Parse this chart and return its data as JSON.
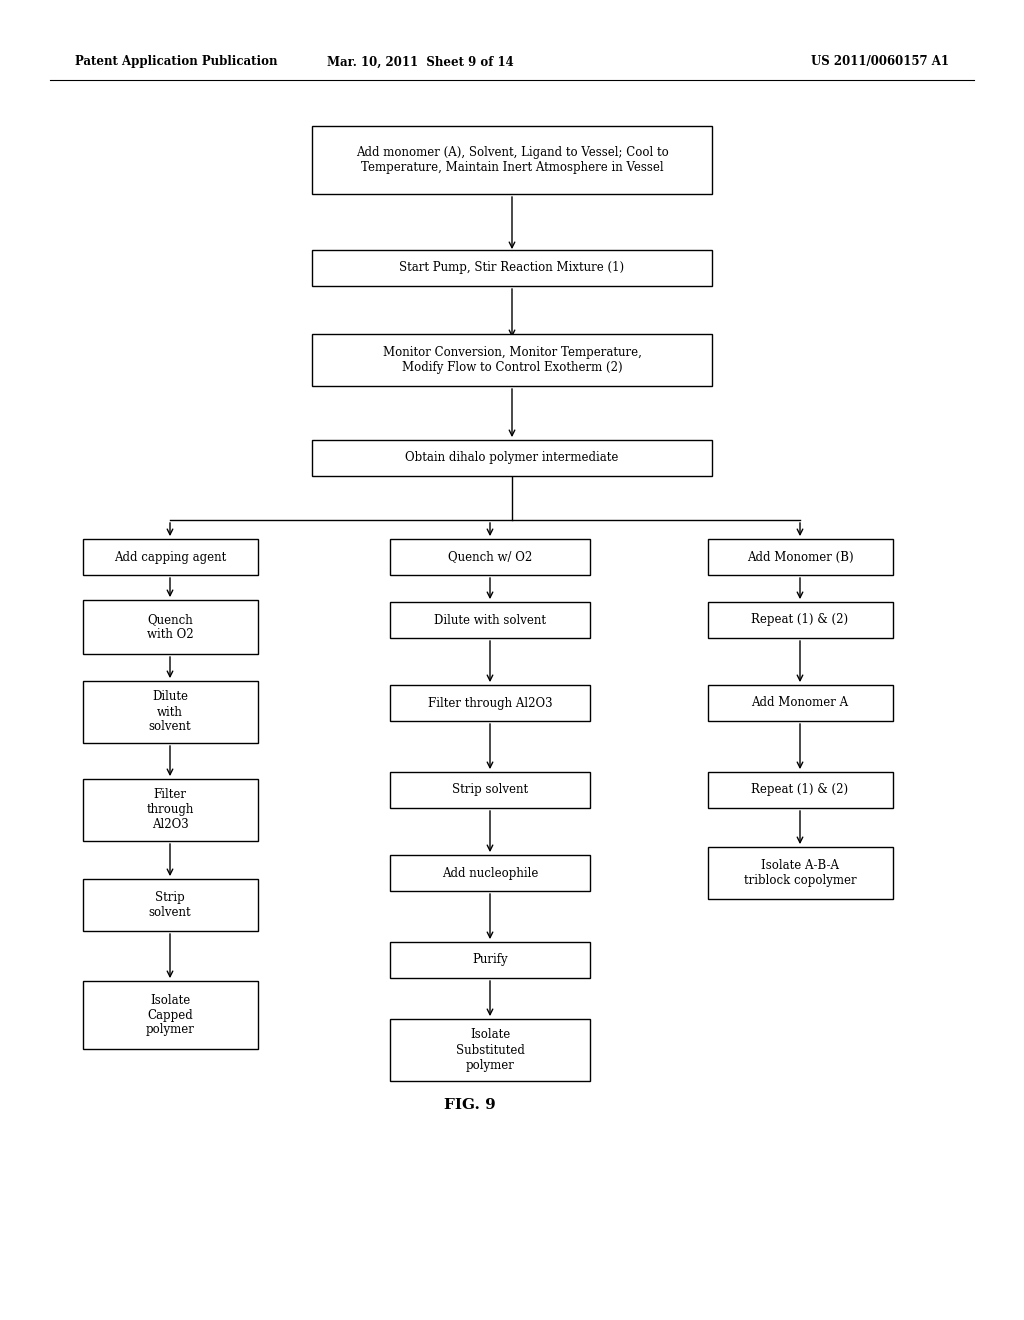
{
  "header_left": "Patent Application Publication",
  "header_mid": "Mar. 10, 2011  Sheet 9 of 14",
  "header_right": "US 2011/0060157 A1",
  "fig_label": "FIG. 9",
  "bg_color": "#ffffff"
}
